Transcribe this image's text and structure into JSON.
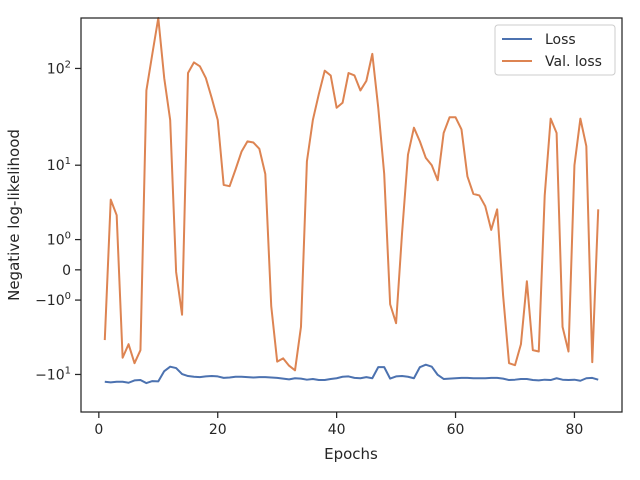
{
  "chart_data": {
    "type": "line",
    "title": "",
    "xlabel": "Epochs",
    "ylabel": "Negative log-likelihood",
    "yscale": "symlog",
    "xlim": [
      -3,
      88
    ],
    "ylim": [
      -25,
      320
    ],
    "grid": false,
    "legend_position": "top-right",
    "x_ticks": [
      0,
      20,
      40,
      60,
      80
    ],
    "x_tick_labels": [
      "0",
      "20",
      "40",
      "60",
      "80"
    ],
    "y_ticks": [
      -10,
      -1,
      0,
      1,
      10,
      100
    ],
    "y_tick_labels": [
      {
        "base": "−10",
        "exp": "1"
      },
      {
        "base": "−10",
        "exp": "0"
      },
      {
        "base": "0",
        "exp": ""
      },
      {
        "base": "10",
        "exp": "0"
      },
      {
        "base": "10",
        "exp": "1"
      },
      {
        "base": "10",
        "exp": "2"
      }
    ],
    "series": [
      {
        "name": "Loss",
        "color": "#4c72b0",
        "x": [
          1,
          2,
          3,
          4,
          5,
          6,
          7,
          8,
          9,
          10,
          11,
          12,
          13,
          14,
          15,
          16,
          17,
          18,
          19,
          20,
          21,
          22,
          23,
          24,
          25,
          26,
          27,
          28,
          29,
          30,
          31,
          32,
          33,
          34,
          35,
          36,
          37,
          38,
          39,
          40,
          41,
          42,
          43,
          44,
          45,
          46,
          47,
          48,
          49,
          50,
          51,
          52,
          53,
          54,
          55,
          56,
          57,
          58,
          59,
          60,
          61,
          62,
          63,
          64,
          65,
          66,
          67,
          68,
          69,
          70,
          71,
          72,
          73,
          74,
          75,
          76,
          77,
          78,
          79,
          80,
          81,
          82,
          83,
          84
        ],
        "y": [
          -12.0,
          -12.2,
          -12.0,
          -12.0,
          -12.3,
          -11.6,
          -11.5,
          -12.4,
          -11.8,
          -11.9,
          -9.2,
          -8.2,
          -8.5,
          -9.9,
          -10.4,
          -10.6,
          -10.7,
          -10.5,
          -10.4,
          -10.5,
          -10.9,
          -10.8,
          -10.6,
          -10.6,
          -10.7,
          -10.8,
          -10.7,
          -10.7,
          -10.8,
          -10.9,
          -11.1,
          -11.3,
          -11.0,
          -11.1,
          -11.4,
          -11.2,
          -11.5,
          -11.5,
          -11.2,
          -11.0,
          -10.6,
          -10.5,
          -10.9,
          -11.0,
          -10.7,
          -11.0,
          -8.3,
          -8.3,
          -11.1,
          -10.5,
          -10.4,
          -10.6,
          -11.0,
          -8.3,
          -7.8,
          -8.2,
          -10.1,
          -11.2,
          -11.1,
          -11.0,
          -10.9,
          -10.9,
          -11.0,
          -11.0,
          -11.0,
          -10.9,
          -10.9,
          -11.1,
          -11.5,
          -11.4,
          -11.2,
          -11.2,
          -11.5,
          -11.6,
          -11.4,
          -11.5,
          -11.0,
          -11.4,
          -11.5,
          -11.4,
          -11.7,
          -11.0,
          -10.9,
          -11.4
        ]
      },
      {
        "name": "Val. loss",
        "color": "#dd8452",
        "x": [
          1,
          2,
          3,
          4,
          5,
          6,
          7,
          8,
          9,
          10,
          11,
          12,
          13,
          14,
          15,
          16,
          17,
          18,
          19,
          20,
          21,
          22,
          23,
          24,
          25,
          26,
          27,
          28,
          29,
          30,
          31,
          32,
          33,
          34,
          35,
          36,
          37,
          38,
          39,
          40,
          41,
          42,
          43,
          44,
          45,
          46,
          47,
          48,
          49,
          50,
          51,
          52,
          53,
          54,
          55,
          56,
          57,
          58,
          59,
          60,
          61,
          62,
          63,
          64,
          65,
          66,
          67,
          68,
          69,
          70,
          71,
          72,
          73,
          74,
          75,
          76,
          77,
          78,
          79,
          80,
          81,
          82,
          83,
          84
        ],
        "y": [
          -4.0,
          4.0,
          2.5,
          -6.5,
          -4.5,
          -7.5,
          -5.3,
          60,
          140,
          320,
          80,
          30,
          -0.05,
          -1.8,
          90,
          115,
          105,
          80,
          50,
          30,
          6,
          5.8,
          9,
          14,
          18,
          17.5,
          15,
          8,
          -1.3,
          -7.2,
          -6.6,
          -8.0,
          -9.0,
          -2.7,
          11,
          30,
          55,
          95,
          85,
          40,
          45,
          90,
          85,
          60,
          75,
          140,
          40,
          8,
          -1.2,
          -2.4,
          1.3,
          13,
          25,
          18,
          12,
          10,
          6.8,
          22,
          32,
          32,
          24,
          7.5,
          4.7,
          4.5,
          3.3,
          1.5,
          3.0,
          -0.8,
          -7.5,
          -7.9,
          -4.5,
          -0.3,
          -5.3,
          -5.5,
          4.5,
          31,
          22,
          -2.7,
          -5.5,
          10,
          31,
          16,
          -7.3,
          3.0
        ]
      }
    ]
  }
}
